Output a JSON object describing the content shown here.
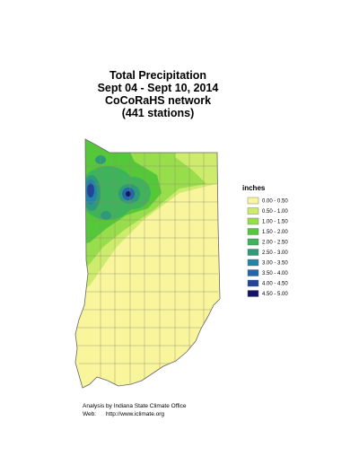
{
  "title": [
    "Total Precipitation",
    "Sept 04 - Sept 10, 2014",
    "CoCoRaHS network",
    "(441 stations)"
  ],
  "legend": {
    "title": "inches",
    "items": [
      {
        "label": "0.00 - 0.50",
        "color": "#f9f59c"
      },
      {
        "label": "0.50 - 1.00",
        "color": "#cdeb6c"
      },
      {
        "label": "1.00 - 1.50",
        "color": "#98de4c"
      },
      {
        "label": "1.50 - 2.00",
        "color": "#55c83a"
      },
      {
        "label": "2.00 - 2.50",
        "color": "#3fb25c"
      },
      {
        "label": "2.50 - 3.00",
        "color": "#2f9a7a"
      },
      {
        "label": "3.00 - 3.50",
        "color": "#2384a8"
      },
      {
        "label": "3.50 - 4.00",
        "color": "#2466a8"
      },
      {
        "label": "4.00 - 4.50",
        "color": "#22459a"
      },
      {
        "label": "4.50 - 5.00",
        "color": "#141466"
      }
    ]
  },
  "footer": {
    "credit": "Analysis by Indiana State Climate Office",
    "web_label": "Web:",
    "url": "http://www.iclimate.org"
  }
}
